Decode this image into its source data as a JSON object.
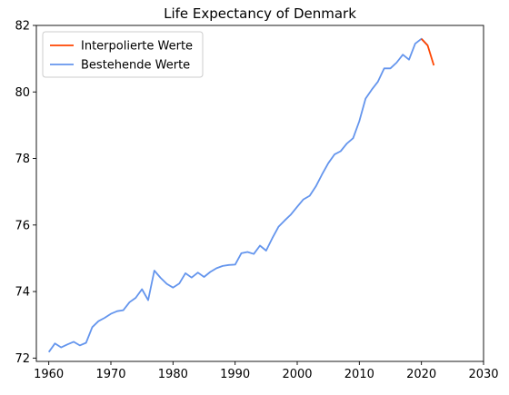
{
  "chart_data": {
    "type": "line",
    "title": "Life Expectancy of Denmark",
    "xlabel": "",
    "ylabel": "",
    "xlim": [
      1958,
      2030
    ],
    "ylim": [
      71.9,
      82
    ],
    "xticks": [
      "1960",
      "1970",
      "1980",
      "1990",
      "2000",
      "2010",
      "2020",
      "2030"
    ],
    "yticks": [
      "72",
      "74",
      "76",
      "78",
      "80",
      "82"
    ],
    "grid": false,
    "legend_position": "top-left",
    "series": [
      {
        "name": "Interpolierte Werte",
        "color": "#ff4500",
        "x": [
          2020,
          2021,
          2022
        ],
        "y": [
          81.6,
          81.4,
          80.8
        ]
      },
      {
        "name": "Bestehende Werte",
        "color": "#6495ed",
        "x": [
          1960,
          1961,
          1962,
          1963,
          1964,
          1965,
          1966,
          1967,
          1968,
          1969,
          1970,
          1971,
          1972,
          1973,
          1974,
          1975,
          1976,
          1977,
          1978,
          1979,
          1980,
          1981,
          1982,
          1983,
          1984,
          1985,
          1986,
          1987,
          1988,
          1989,
          1990,
          1991,
          1992,
          1993,
          1994,
          1995,
          1996,
          1997,
          1998,
          1999,
          2000,
          2001,
          2002,
          2003,
          2004,
          2005,
          2006,
          2007,
          2008,
          2009,
          2010,
          2011,
          2012,
          2013,
          2014,
          2015,
          2016,
          2017,
          2018,
          2019,
          2020,
          2021
        ],
        "y": [
          72.18,
          72.44,
          72.32,
          72.41,
          72.49,
          72.38,
          72.46,
          72.93,
          73.11,
          73.21,
          73.33,
          73.41,
          73.44,
          73.68,
          73.81,
          74.07,
          73.74,
          74.63,
          74.41,
          74.23,
          74.12,
          74.24,
          74.55,
          74.42,
          74.57,
          74.44,
          74.59,
          74.7,
          74.77,
          74.8,
          74.81,
          75.15,
          75.19,
          75.13,
          75.38,
          75.23,
          75.61,
          75.95,
          76.14,
          76.32,
          76.55,
          76.77,
          76.88,
          77.16,
          77.52,
          77.86,
          78.12,
          78.22,
          78.45,
          78.61,
          79.12,
          79.8,
          80.07,
          80.31,
          80.71,
          80.71,
          80.88,
          81.12,
          80.97,
          81.45,
          81.6,
          81.4
        ]
      }
    ]
  }
}
